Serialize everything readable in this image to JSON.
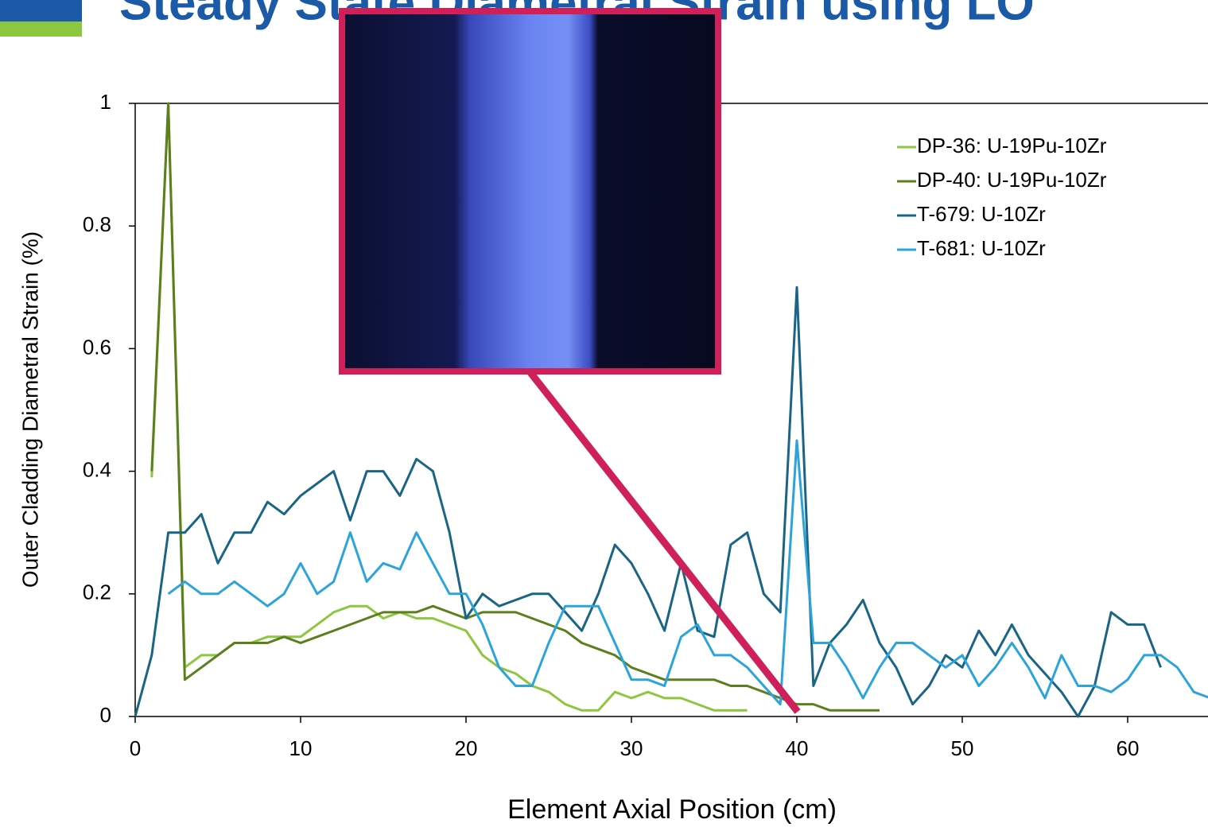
{
  "chart_data": {
    "type": "line",
    "title": "Steady State Diametral Strain using LO",
    "x_label": "Element Axial Position (cm)",
    "y_label": "Outer Cladding Diametral Strain (%)",
    "x": [
      0,
      1,
      2,
      3,
      4,
      5,
      6,
      7,
      8,
      9,
      10,
      11,
      12,
      13,
      14,
      15,
      16,
      17,
      18,
      19,
      20,
      21,
      22,
      23,
      24,
      25,
      26,
      27,
      28,
      29,
      30,
      31,
      32,
      33,
      34,
      35,
      36,
      37,
      38,
      39,
      40,
      41,
      42,
      43,
      44,
      45,
      46,
      47,
      48,
      49,
      50,
      51,
      52,
      53,
      54,
      55,
      56,
      57,
      58,
      59,
      60,
      61,
      62,
      63,
      64,
      65
    ],
    "series": [
      {
        "name": "DP-36: U-19Pu-10Zr",
        "color": "#8dc63f",
        "values": [
          null,
          0.39,
          1,
          0.08,
          0.1,
          0.1,
          0.12,
          0.12,
          0.13,
          0.13,
          0.13,
          0.15,
          0.17,
          0.18,
          0.18,
          0.16,
          0.17,
          0.16,
          0.16,
          0.15,
          0.14,
          0.1,
          0.08,
          0.07,
          0.05,
          0.04,
          0.02,
          0.01,
          0.01,
          0.04,
          0.03,
          0.04,
          0.03,
          0.03,
          0.02,
          0.01,
          0.01,
          0.01,
          null,
          null,
          null,
          null,
          null,
          null,
          null,
          null,
          null,
          null,
          null,
          null,
          null,
          null,
          null,
          null,
          null,
          null,
          null,
          null,
          null,
          null,
          null,
          null,
          null,
          null,
          null,
          null
        ]
      },
      {
        "name": "DP-40: U-19Pu-10Zr",
        "color": "#5c7f1e",
        "values": [
          null,
          0.4,
          1,
          0.06,
          0.08,
          0.1,
          0.12,
          0.12,
          0.12,
          0.13,
          0.12,
          0.13,
          0.14,
          0.15,
          0.16,
          0.17,
          0.17,
          0.17,
          0.18,
          0.17,
          0.16,
          0.17,
          0.17,
          0.17,
          0.16,
          0.15,
          0.14,
          0.12,
          0.11,
          0.1,
          0.08,
          0.07,
          0.06,
          0.06,
          0.06,
          0.06,
          0.05,
          0.05,
          0.04,
          0.03,
          0.02,
          0.02,
          0.01,
          0.01,
          0.01,
          0.01,
          null,
          null,
          null,
          null,
          null,
          null,
          null,
          null,
          null,
          null,
          null,
          null,
          null,
          null,
          null,
          null,
          null,
          null,
          null,
          null
        ]
      },
      {
        "name": "T-679: U-10Zr",
        "color": "#1a6485",
        "values": [
          0,
          0.1,
          0.3,
          0.3,
          0.33,
          0.25,
          0.3,
          0.3,
          0.35,
          0.33,
          0.36,
          0.38,
          0.4,
          0.32,
          0.4,
          0.4,
          0.36,
          0.42,
          0.4,
          0.3,
          0.16,
          0.2,
          0.18,
          0.19,
          0.2,
          0.2,
          0.17,
          0.14,
          0.2,
          0.28,
          0.25,
          0.2,
          0.14,
          0.25,
          0.14,
          0.13,
          0.28,
          0.3,
          0.2,
          0.17,
          0.7,
          0.05,
          0.12,
          0.15,
          0.19,
          0.12,
          0.08,
          0.02,
          0.05,
          0.1,
          0.08,
          0.14,
          0.1,
          0.15,
          0.1,
          0.07,
          0.04,
          0,
          0.05,
          0.17,
          0.15,
          0.15,
          0.08,
          null,
          null,
          null
        ]
      },
      {
        "name": "T-681: U-10Zr",
        "color": "#2aa4db",
        "values": [
          null,
          null,
          0.2,
          0.22,
          0.2,
          0.2,
          0.22,
          0.2,
          0.18,
          0.2,
          0.25,
          0.2,
          0.22,
          0.3,
          0.22,
          0.25,
          0.24,
          0.3,
          0.25,
          0.2,
          0.2,
          0.15,
          0.08,
          0.05,
          0.05,
          0.12,
          0.18,
          0.18,
          0.18,
          0.12,
          0.06,
          0.06,
          0.05,
          0.13,
          0.15,
          0.1,
          0.1,
          0.08,
          0.05,
          0.02,
          0.45,
          0.12,
          0.12,
          0.08,
          0.03,
          0.08,
          0.12,
          0.12,
          0.1,
          0.08,
          0.1,
          0.05,
          0.08,
          0.12,
          0.08,
          0.03,
          0.1,
          0.05,
          0.05,
          0.04,
          0.06,
          0.1,
          0.1,
          0.08,
          0.04,
          0.03
        ]
      }
    ],
    "xlim": [
      0,
      65
    ],
    "xticks": [
      0,
      10,
      20,
      30,
      40,
      50,
      60
    ],
    "ylim": [
      0,
      1
    ],
    "yticks": [
      0,
      0.2,
      0.4,
      0.6,
      0.8,
      1
    ],
    "legend": "upper right"
  }
}
